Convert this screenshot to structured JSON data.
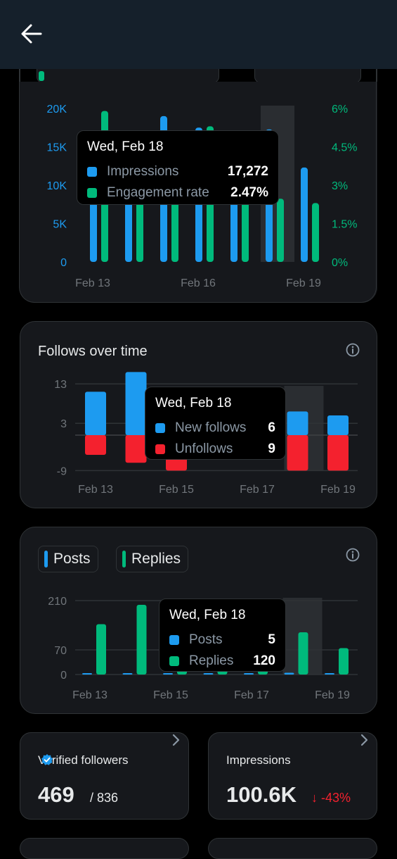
{
  "colors": {
    "blue": "#1d9bf0",
    "green": "#00ba7c",
    "red": "#f4212e",
    "muted": "#71767b"
  },
  "icons": {
    "back": "arrow-left-icon",
    "info": "info-circle-icon",
    "verified": "verified-badge-icon",
    "chevron": "chevron-right-icon"
  },
  "impressions_chart": {
    "tooltip": {
      "date": "Wed, Feb 18",
      "rows": [
        {
          "label": "Impressions",
          "value": "17,272"
        },
        {
          "label": "Engagement rate",
          "value": "2.47%"
        }
      ]
    }
  },
  "follows_chart": {
    "title": "Follows over time",
    "tooltip": {
      "date": "Wed, Feb 18",
      "rows": [
        {
          "label": "New follows",
          "value": "6"
        },
        {
          "label": "Unfollows",
          "value": "9"
        }
      ]
    }
  },
  "posts_chart": {
    "chips": [
      {
        "label": "Posts"
      },
      {
        "label": "Replies"
      }
    ],
    "tooltip": {
      "date": "Wed, Feb 18",
      "rows": [
        {
          "label": "Posts",
          "value": "5"
        },
        {
          "label": "Replies",
          "value": "120"
        }
      ]
    }
  },
  "stats": {
    "verified_followers": {
      "title": "Verified followers",
      "value": "469",
      "total": "/ 836"
    },
    "impressions": {
      "title": "Impressions",
      "value": "100.6K",
      "change": "↓ -43%"
    }
  },
  "chart_data": [
    {
      "type": "bar",
      "categories": [
        "Feb 13",
        "Feb 14",
        "Feb 15",
        "Feb 16",
        "Feb 17",
        "Feb 18",
        "Feb 19"
      ],
      "x_tick_labels": [
        "Feb 13",
        "Feb 16",
        "Feb 19"
      ],
      "y_left_ticks": [
        "0",
        "5K",
        "10K",
        "15K",
        "20K"
      ],
      "y_right_ticks": [
        "0%",
        "1.5%",
        "3%",
        "4.5%",
        "6%"
      ],
      "ylim_left": [
        0,
        20000
      ],
      "ylim_right": [
        0,
        6
      ],
      "highlighted_category": "Feb 18",
      "series": [
        {
          "name": "Impressions",
          "axis": "left",
          "values": [
            10000,
            10000,
            19000,
            17500,
            10000,
            17272,
            12300
          ]
        },
        {
          "name": "Engagement rate",
          "axis": "right",
          "values": [
            5.9,
            4.5,
            4.6,
            5.3,
            4.5,
            2.47,
            2.3
          ]
        }
      ]
    },
    {
      "type": "bar",
      "categories": [
        "Feb 13",
        "Feb 14",
        "Feb 15",
        "Feb 16",
        "Feb 17",
        "Feb 18",
        "Feb 19"
      ],
      "x_tick_labels": [
        "Feb 13",
        "Feb 15",
        "Feb 17",
        "Feb 19"
      ],
      "y_ticks": [
        "13",
        "3",
        "-9"
      ],
      "ylim": [
        -10,
        16
      ],
      "highlighted_category": "Feb 18",
      "series": [
        {
          "name": "New follows",
          "values": [
            11,
            16,
            6,
            5,
            5,
            6,
            5
          ]
        },
        {
          "name": "Unfollows",
          "values": [
            -5,
            -7,
            -9,
            -6,
            -5,
            -9,
            -9
          ]
        }
      ]
    },
    {
      "type": "bar",
      "categories": [
        "Feb 13",
        "Feb 14",
        "Feb 15",
        "Feb 16",
        "Feb 17",
        "Feb 18",
        "Feb 19"
      ],
      "x_tick_labels": [
        "Feb 13",
        "Feb 15",
        "Feb 17",
        "Feb 19"
      ],
      "y_ticks": [
        "210",
        "70",
        "0"
      ],
      "ylim": [
        0,
        210
      ],
      "highlighted_category": "Feb 18",
      "series": [
        {
          "name": "Posts",
          "values": [
            3,
            3,
            4,
            4,
            4,
            5,
            2
          ]
        },
        {
          "name": "Replies",
          "values": [
            143,
            198,
            95,
            90,
            100,
            120,
            75
          ]
        }
      ]
    }
  ]
}
